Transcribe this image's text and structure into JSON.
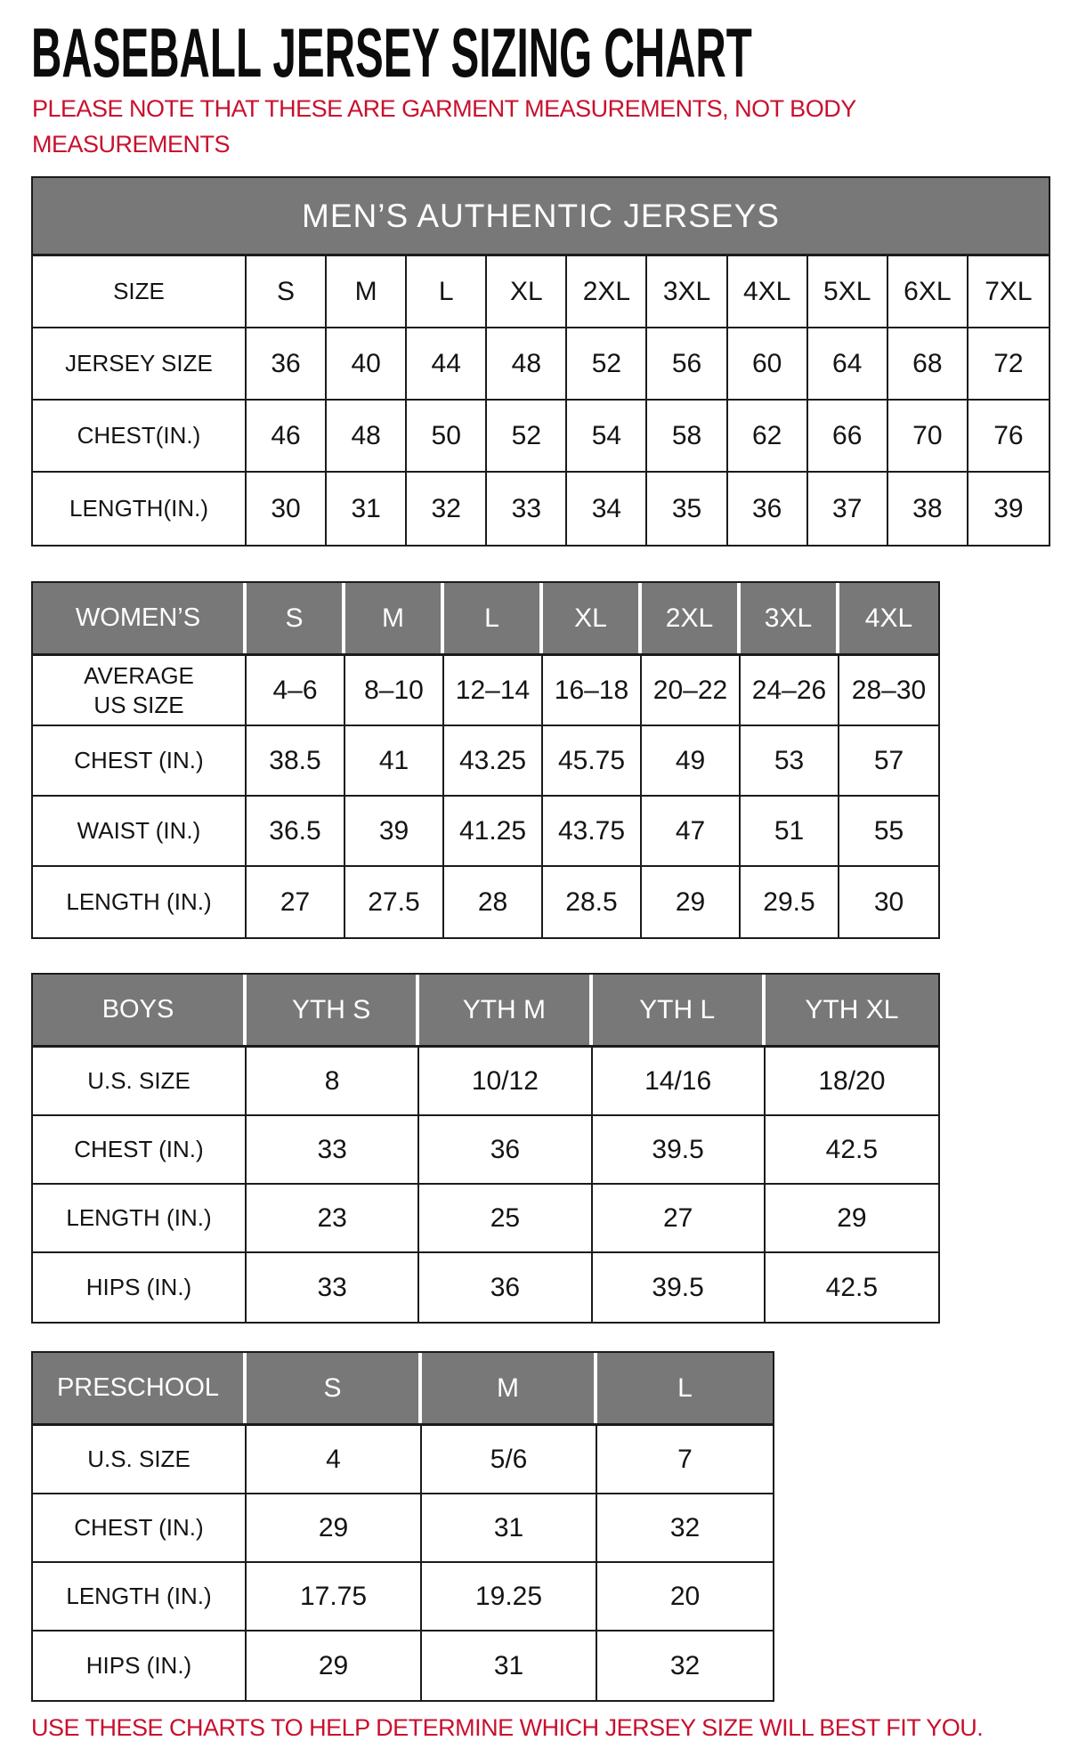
{
  "page": {
    "title": "BASEBALL JERSEY SIZING CHART",
    "note": "PLEASE NOTE THAT THESE ARE GARMENT MEASUREMENTS, NOT BODY\nMEASUREMENTS",
    "footer": "USE THESE CHARTS TO HELP DETERMINE WHICH JERSEY SIZE WILL BEST FIT YOU.",
    "colors": {
      "accent_red": "#c8102e",
      "header_gray": "#787878",
      "border_black": "#1b1b1b"
    }
  },
  "tables": {
    "mens": {
      "banner": "MEN’S AUTHENTIC JERSEYS",
      "rows": [
        {
          "label": "SIZE",
          "values": [
            "S",
            "M",
            "L",
            "XL",
            "2XL",
            "3XL",
            "4XL",
            "5XL",
            "6XL",
            "7XL"
          ]
        },
        {
          "label": "JERSEY SIZE",
          "values": [
            "36",
            "40",
            "44",
            "48",
            "52",
            "56",
            "60",
            "64",
            "68",
            "72"
          ]
        },
        {
          "label": "CHEST(IN.)",
          "values": [
            "46",
            "48",
            "50",
            "52",
            "54",
            "58",
            "62",
            "66",
            "70",
            "76"
          ]
        },
        {
          "label": "LENGTH(IN.)",
          "values": [
            "30",
            "31",
            "32",
            "33",
            "34",
            "35",
            "36",
            "37",
            "38",
            "39"
          ]
        }
      ]
    },
    "womens": {
      "header": {
        "label": "WOMEN’S",
        "values": [
          "S",
          "M",
          "L",
          "XL",
          "2XL",
          "3XL",
          "4XL"
        ]
      },
      "rows": [
        {
          "label": "AVERAGE\nUS SIZE",
          "values": [
            "4–6",
            "8–10",
            "12–14",
            "16–18",
            "20–22",
            "24–26",
            "28–30"
          ]
        },
        {
          "label": "CHEST (IN.)",
          "values": [
            "38.5",
            "41",
            "43.25",
            "45.75",
            "49",
            "53",
            "57"
          ]
        },
        {
          "label": "WAIST (IN.)",
          "values": [
            "36.5",
            "39",
            "41.25",
            "43.75",
            "47",
            "51",
            "55"
          ]
        },
        {
          "label": "LENGTH (IN.)",
          "values": [
            "27",
            "27.5",
            "28",
            "28.5",
            "29",
            "29.5",
            "30"
          ]
        }
      ]
    },
    "boys": {
      "header": {
        "label": "BOYS",
        "values": [
          "YTH S",
          "YTH M",
          "YTH L",
          "YTH XL"
        ]
      },
      "rows": [
        {
          "label": "U.S. SIZE",
          "values": [
            "8",
            "10/12",
            "14/16",
            "18/20"
          ]
        },
        {
          "label": "CHEST (IN.)",
          "values": [
            "33",
            "36",
            "39.5",
            "42.5"
          ]
        },
        {
          "label": "LENGTH (IN.)",
          "values": [
            "23",
            "25",
            "27",
            "29"
          ]
        },
        {
          "label": "HIPS (IN.)",
          "values": [
            "33",
            "36",
            "39.5",
            "42.5"
          ]
        }
      ]
    },
    "preschool": {
      "header": {
        "label": "PRESCHOOL",
        "values": [
          "S",
          "M",
          "L"
        ]
      },
      "rows": [
        {
          "label": "U.S. SIZE",
          "values": [
            "4",
            "5/6",
            "7"
          ]
        },
        {
          "label": "CHEST (IN.)",
          "values": [
            "29",
            "31",
            "32"
          ]
        },
        {
          "label": "LENGTH (IN.)",
          "values": [
            "17.75",
            "19.25",
            "20"
          ]
        },
        {
          "label": "HIPS (IN.)",
          "values": [
            "29",
            "31",
            "32"
          ]
        }
      ]
    }
  }
}
